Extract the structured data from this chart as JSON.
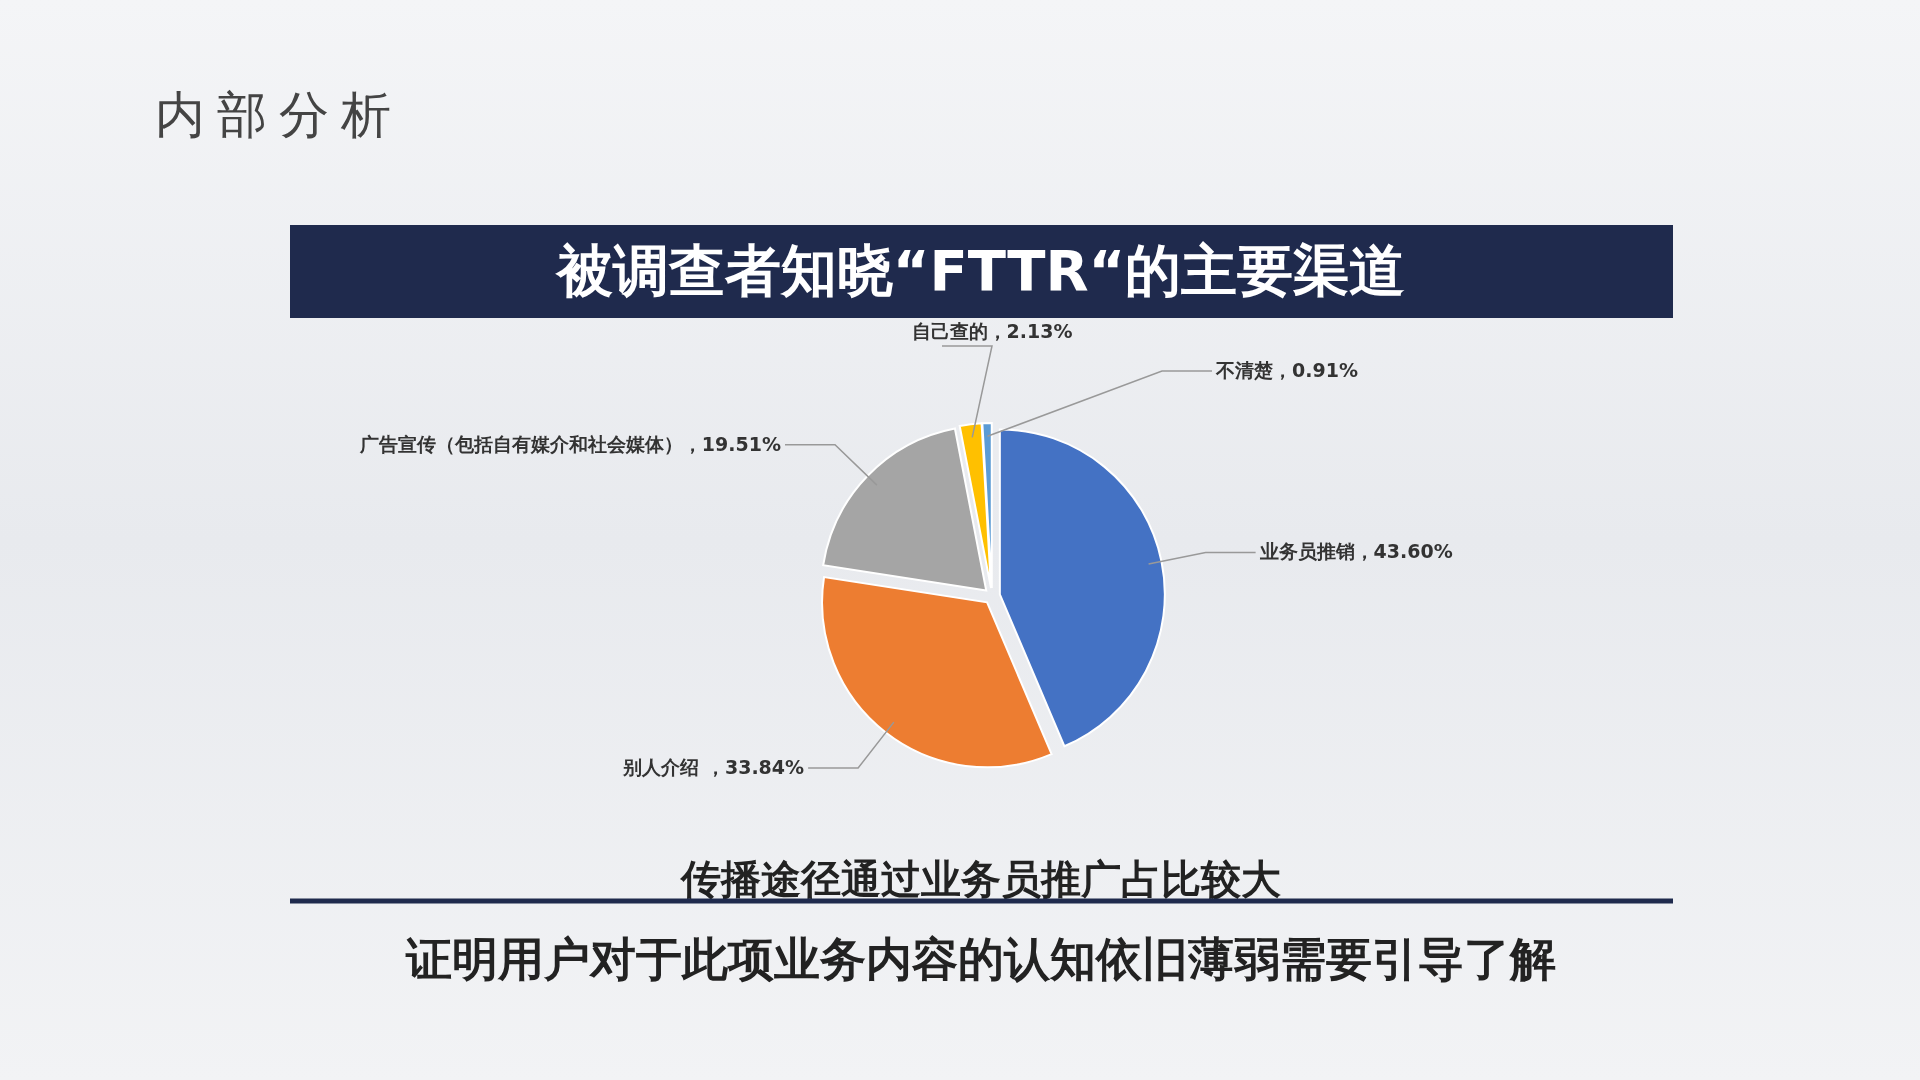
{
  "chart_data": {
    "type": "pie",
    "title": "内部分析",
    "subtitle": "被调查者知晓“FTTR“的主要渠道",
    "categories": [
      "业务员推销",
      "别人介绍 ",
      "广告宣传（包括自有媒介和社会媒体）",
      "自己查的",
      "不清楚"
    ],
    "values": [
      43.6,
      33.84,
      19.51,
      2.13,
      0.91
    ],
    "colors": [
      "#4472c4",
      "#ed7d31",
      "#a5a5a5",
      "#ffc000",
      "#5b9bd5"
    ],
    "value_labels": [
      "43.60%",
      "33.84%",
      "19.51%",
      "2.13%",
      "0.91%"
    ],
    "annotations": [
      "传播途径通过业务员推广占比较大",
      "证明用户对于此项业务内容的认知依旧薄弱需要引导了解"
    ]
  }
}
